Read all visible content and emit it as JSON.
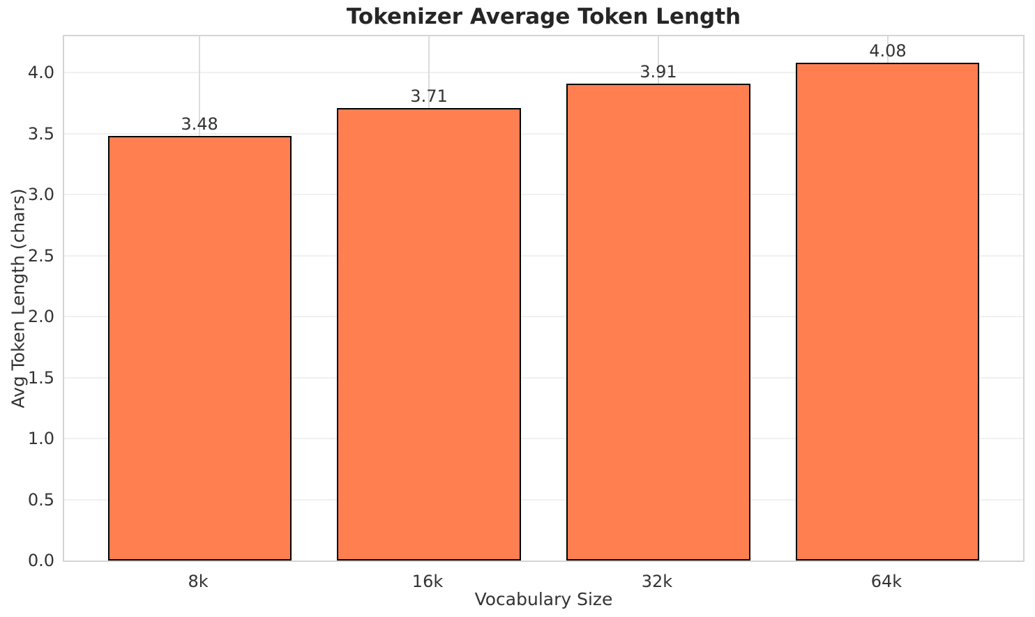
{
  "chart_data": {
    "type": "bar",
    "title": "Tokenizer Average Token Length",
    "xlabel": "Vocabulary Size",
    "ylabel": "Avg Token Length (chars)",
    "categories": [
      "8k",
      "16k",
      "32k",
      "64k"
    ],
    "values": [
      3.48,
      3.71,
      3.91,
      4.08
    ],
    "bar_labels": [
      "3.48",
      "3.71",
      "3.91",
      "4.08"
    ],
    "ylim": [
      0,
      4.3
    ],
    "yticks": [
      0.0,
      0.5,
      1.0,
      1.5,
      2.0,
      2.5,
      3.0,
      3.5,
      4.0
    ],
    "ytick_labels": [
      "0.0",
      "0.5",
      "1.0",
      "1.5",
      "2.0",
      "2.5",
      "3.0",
      "3.5",
      "4.0"
    ],
    "grid": true,
    "legend": false,
    "colors": {
      "bar_fill": "#FF7F50",
      "bar_edge": "#000000",
      "grid_horizontal": "#f0f0f0",
      "grid_vertical": "#dcdcdc",
      "spine": "#d4d4d4",
      "text": "#333333",
      "title": "#262626",
      "background": "#ffffff"
    }
  }
}
